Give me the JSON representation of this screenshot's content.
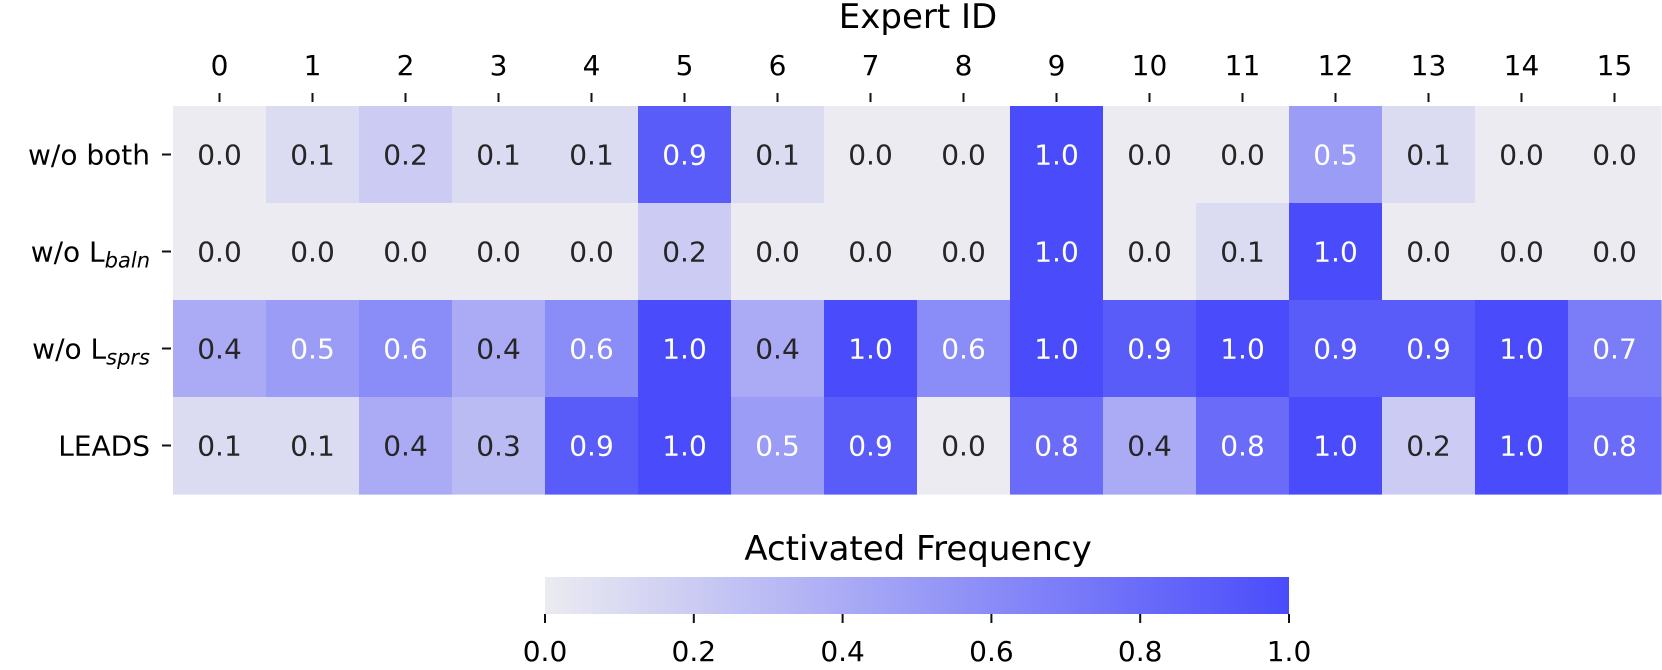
{
  "chart_data": {
    "type": "heatmap",
    "title": "",
    "xlabel": "Expert ID",
    "x_axis_position": "top",
    "columns": [
      "0",
      "1",
      "2",
      "3",
      "4",
      "5",
      "6",
      "7",
      "8",
      "9",
      "10",
      "11",
      "12",
      "13",
      "14",
      "15"
    ],
    "rows": [
      {
        "label": "w/o both",
        "label_main": "w/o both",
        "label_sub": ""
      },
      {
        "label": "w/o L_baln",
        "label_main": "w/o L",
        "label_sub": "baln"
      },
      {
        "label": "w/o L_sprs",
        "label_main": "w/o L",
        "label_sub": "sprs"
      },
      {
        "label": "LEADS",
        "label_main": "LEADS",
        "label_sub": ""
      }
    ],
    "values": [
      [
        0.0,
        0.1,
        0.2,
        0.1,
        0.1,
        0.9,
        0.1,
        0.0,
        0.0,
        1.0,
        0.0,
        0.0,
        0.5,
        0.1,
        0.0,
        0.0
      ],
      [
        0.0,
        0.0,
        0.0,
        0.0,
        0.0,
        0.2,
        0.0,
        0.0,
        0.0,
        1.0,
        0.0,
        0.1,
        1.0,
        0.0,
        0.0,
        0.0
      ],
      [
        0.4,
        0.5,
        0.6,
        0.4,
        0.6,
        1.0,
        0.4,
        1.0,
        0.6,
        1.0,
        0.9,
        1.0,
        0.9,
        0.9,
        1.0,
        0.7
      ],
      [
        0.1,
        0.1,
        0.4,
        0.3,
        0.9,
        1.0,
        0.5,
        0.9,
        0.0,
        0.8,
        0.4,
        0.8,
        1.0,
        0.2,
        1.0,
        0.8
      ]
    ],
    "colorbar": {
      "title": "Activated Frequency",
      "orientation": "horizontal",
      "placement": "bottom",
      "range": [
        0.0,
        1.0
      ],
      "ticks": [
        "0.0",
        "0.2",
        "0.4",
        "0.6",
        "0.8",
        "1.0"
      ],
      "color_low": "#ebebf1",
      "color_high": "#4a4cfb"
    },
    "text_color_dark": "#262626",
    "text_color_light": "#ffffff"
  }
}
